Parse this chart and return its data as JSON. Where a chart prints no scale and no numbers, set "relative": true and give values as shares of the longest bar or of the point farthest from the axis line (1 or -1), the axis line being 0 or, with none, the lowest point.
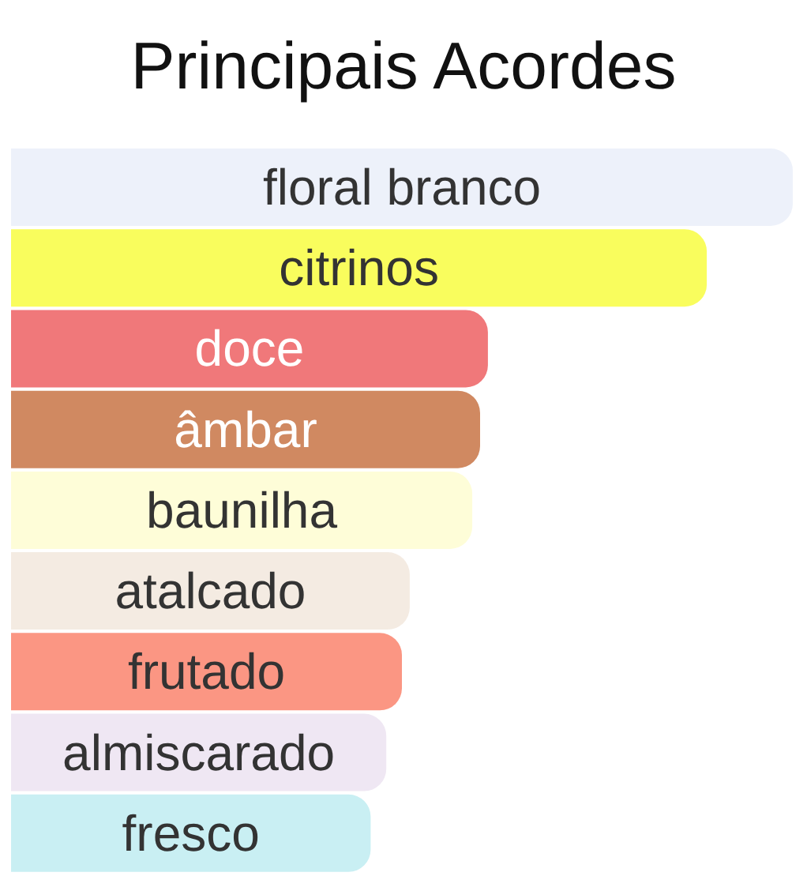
{
  "chart_data": {
    "type": "bar",
    "title": "Principais Acordes",
    "orientation": "horizontal",
    "relative": true,
    "categories": [
      "floral branco",
      "citrinos",
      "doce",
      "âmbar",
      "baunilha",
      "atalcado",
      "frutado",
      "almiscarado",
      "fresco"
    ],
    "values": [
      1,
      0.89,
      0.61,
      0.6,
      0.59,
      0.51,
      0.5,
      0.48,
      0.46
    ],
    "colors": [
      "#edf1fa",
      "#f9fd5d",
      "#f0787a",
      "#d08961",
      "#fefdd8",
      "#f4ebe2",
      "#fb9683",
      "#efe7f3",
      "#c9eff3"
    ],
    "legend": false,
    "grid": false
  }
}
